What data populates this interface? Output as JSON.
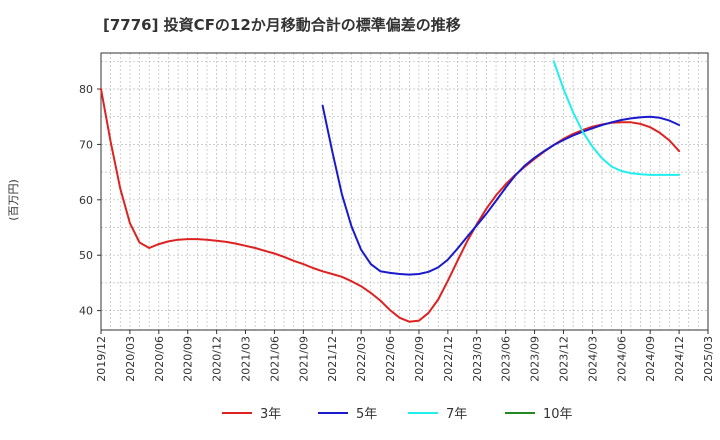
{
  "chart_data": {
    "type": "line",
    "title": "[7776]  投資CFの12か月移動合計の標準偏差の推移",
    "ylabel": "(百万円)",
    "xlabel": "",
    "x_ticks": [
      "2019/12",
      "2020/03",
      "2020/06",
      "2020/09",
      "2020/12",
      "2021/03",
      "2021/06",
      "2021/09",
      "2021/12",
      "2022/03",
      "2022/06",
      "2022/09",
      "2022/12",
      "2023/03",
      "2023/06",
      "2023/09",
      "2023/12",
      "2024/03",
      "2024/06",
      "2024/09",
      "2024/12",
      "2025/03"
    ],
    "y_ticks": [
      40,
      50,
      60,
      70,
      80
    ],
    "ylim": [
      36.5,
      86.5
    ],
    "grid": true,
    "legend_position": "bottom",
    "series": [
      {
        "name": "3年",
        "color": "#dd2222",
        "x": [
          "2019/12",
          "2020/01",
          "2020/02",
          "2020/03",
          "2020/04",
          "2020/05",
          "2020/06",
          "2020/07",
          "2020/08",
          "2020/09",
          "2020/10",
          "2020/11",
          "2020/12",
          "2021/01",
          "2021/02",
          "2021/03",
          "2021/04",
          "2021/05",
          "2021/06",
          "2021/07",
          "2021/08",
          "2021/09",
          "2021/10",
          "2021/11",
          "2021/12",
          "2022/01",
          "2022/02",
          "2022/03",
          "2022/04",
          "2022/05",
          "2022/06",
          "2022/07",
          "2022/08",
          "2022/09",
          "2022/10",
          "2022/11",
          "2022/12",
          "2023/01",
          "2023/02",
          "2023/03",
          "2023/04",
          "2023/05",
          "2023/06",
          "2023/07",
          "2023/08",
          "2023/09",
          "2023/10",
          "2023/11",
          "2023/12",
          "2024/01",
          "2024/02",
          "2024/03",
          "2024/04",
          "2024/05",
          "2024/06",
          "2024/07",
          "2024/08",
          "2024/09",
          "2024/10",
          "2024/11",
          "2024/12"
        ],
        "values": [
          80.0,
          70.5,
          62.0,
          55.8,
          52.3,
          51.3,
          52.0,
          52.5,
          52.8,
          52.9,
          52.9,
          52.8,
          52.6,
          52.4,
          52.1,
          51.7,
          51.3,
          50.8,
          50.3,
          49.7,
          49.0,
          48.4,
          47.7,
          47.1,
          46.6,
          46.1,
          45.3,
          44.4,
          43.2,
          41.8,
          40.1,
          38.7,
          38.0,
          38.2,
          39.6,
          42.0,
          45.4,
          49.0,
          52.5,
          55.6,
          58.4,
          60.8,
          62.8,
          64.5,
          66.0,
          67.4,
          68.7,
          69.9,
          71.0,
          71.9,
          72.6,
          73.2,
          73.6,
          73.9,
          74.0,
          74.0,
          73.7,
          73.1,
          72.1,
          70.7,
          68.8
        ]
      },
      {
        "name": "5年",
        "color": "#1a1acc",
        "x": [
          "2021/11",
          "2021/12",
          "2022/01",
          "2022/02",
          "2022/03",
          "2022/04",
          "2022/05",
          "2022/06",
          "2022/07",
          "2022/08",
          "2022/09",
          "2022/10",
          "2022/11",
          "2022/12",
          "2023/01",
          "2023/02",
          "2023/03",
          "2023/04",
          "2023/05",
          "2023/06",
          "2023/07",
          "2023/08",
          "2023/09",
          "2023/10",
          "2023/11",
          "2023/12",
          "2024/01",
          "2024/02",
          "2024/03",
          "2024/04",
          "2024/05",
          "2024/06",
          "2024/07",
          "2024/08",
          "2024/09",
          "2024/10",
          "2024/11",
          "2024/12"
        ],
        "values": [
          77.0,
          68.8,
          61.0,
          55.2,
          51.0,
          48.4,
          47.1,
          46.8,
          46.6,
          46.5,
          46.6,
          47.0,
          47.8,
          49.2,
          51.2,
          53.3,
          55.4,
          57.5,
          59.8,
          62.2,
          64.4,
          66.2,
          67.6,
          68.8,
          69.9,
          70.8,
          71.6,
          72.3,
          72.9,
          73.5,
          74.0,
          74.4,
          74.7,
          74.9,
          75.0,
          74.8,
          74.3,
          73.5
        ]
      },
      {
        "name": "7年",
        "color": "#22eeee",
        "x": [
          "2023/11",
          "2023/12",
          "2024/01",
          "2024/02",
          "2024/03",
          "2024/04",
          "2024/05",
          "2024/06",
          "2024/07",
          "2024/08",
          "2024/09",
          "2024/10",
          "2024/11",
          "2024/12"
        ],
        "values": [
          85.0,
          80.0,
          75.8,
          72.3,
          69.6,
          67.5,
          66.0,
          65.2,
          64.8,
          64.6,
          64.5,
          64.5,
          64.5,
          64.5
        ]
      },
      {
        "name": "10年",
        "color": "#228822",
        "x": [],
        "values": []
      }
    ]
  }
}
